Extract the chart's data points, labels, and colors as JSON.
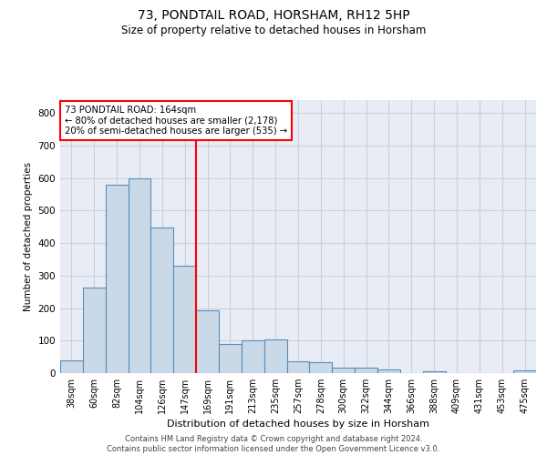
{
  "title": "73, PONDTAIL ROAD, HORSHAM, RH12 5HP",
  "subtitle": "Size of property relative to detached houses in Horsham",
  "xlabel": "Distribution of detached houses by size in Horsham",
  "ylabel": "Number of detached properties",
  "footer_line1": "Contains HM Land Registry data © Crown copyright and database right 2024.",
  "footer_line2": "Contains public sector information licensed under the Open Government Licence v3.0.",
  "categories": [
    "38sqm",
    "60sqm",
    "82sqm",
    "104sqm",
    "126sqm",
    "147sqm",
    "169sqm",
    "191sqm",
    "213sqm",
    "235sqm",
    "257sqm",
    "278sqm",
    "300sqm",
    "322sqm",
    "344sqm",
    "366sqm",
    "388sqm",
    "409sqm",
    "431sqm",
    "453sqm",
    "475sqm"
  ],
  "values": [
    38,
    263,
    580,
    600,
    447,
    330,
    193,
    90,
    101,
    105,
    37,
    35,
    17,
    17,
    12,
    0,
    7,
    0,
    0,
    0,
    8
  ],
  "bar_color": "#c9d9e8",
  "bar_edge_color": "#5b8db8",
  "annotation_text_line1": "73 PONDTAIL ROAD: 164sqm",
  "annotation_text_line2": "← 80% of detached houses are smaller (2,178)",
  "annotation_text_line3": "20% of semi-detached houses are larger (535) →",
  "ylim": [
    0,
    840
  ],
  "yticks": [
    0,
    100,
    200,
    300,
    400,
    500,
    600,
    700,
    800
  ],
  "grid_color": "#c8d0dc",
  "bg_color": "#e8edf5",
  "red_line_index": 6,
  "figwidth": 6.0,
  "figheight": 5.0,
  "dpi": 100
}
